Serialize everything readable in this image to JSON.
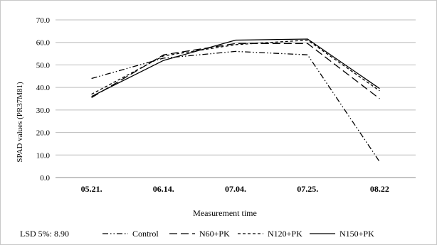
{
  "chart_data": {
    "type": "line",
    "categories": [
      "05.21.",
      "06.14.",
      "07.04.",
      "07.25.",
      "08.22"
    ],
    "ylabel": "SPAD values (PR37M81)",
    "xlabel": "Measurement time",
    "ylim": [
      0,
      70
    ],
    "yticks": [
      "0.0",
      "10.0",
      "20.0",
      "30.0",
      "40.0",
      "50.0",
      "60.0",
      "70.0"
    ],
    "grid": true,
    "legend_position": "bottom",
    "note": "LSD 5%: 8.90",
    "series": [
      {
        "name": "Control",
        "values": [
          44.0,
          53.0,
          56.0,
          54.5,
          7.0
        ],
        "dash": "dashdotdot",
        "color": "#000000"
      },
      {
        "name": "N60+PK",
        "values": [
          35.5,
          54.5,
          59.5,
          59.5,
          35.0
        ],
        "dash": "longdash",
        "color": "#000000"
      },
      {
        "name": "N120+PK",
        "values": [
          37.0,
          54.0,
          59.0,
          61.0,
          38.5
        ],
        "dash": "shortdash",
        "color": "#000000"
      },
      {
        "name": "N150+PK",
        "values": [
          36.0,
          52.0,
          61.0,
          61.5,
          39.5
        ],
        "dash": "solid",
        "color": "#000000"
      }
    ]
  }
}
